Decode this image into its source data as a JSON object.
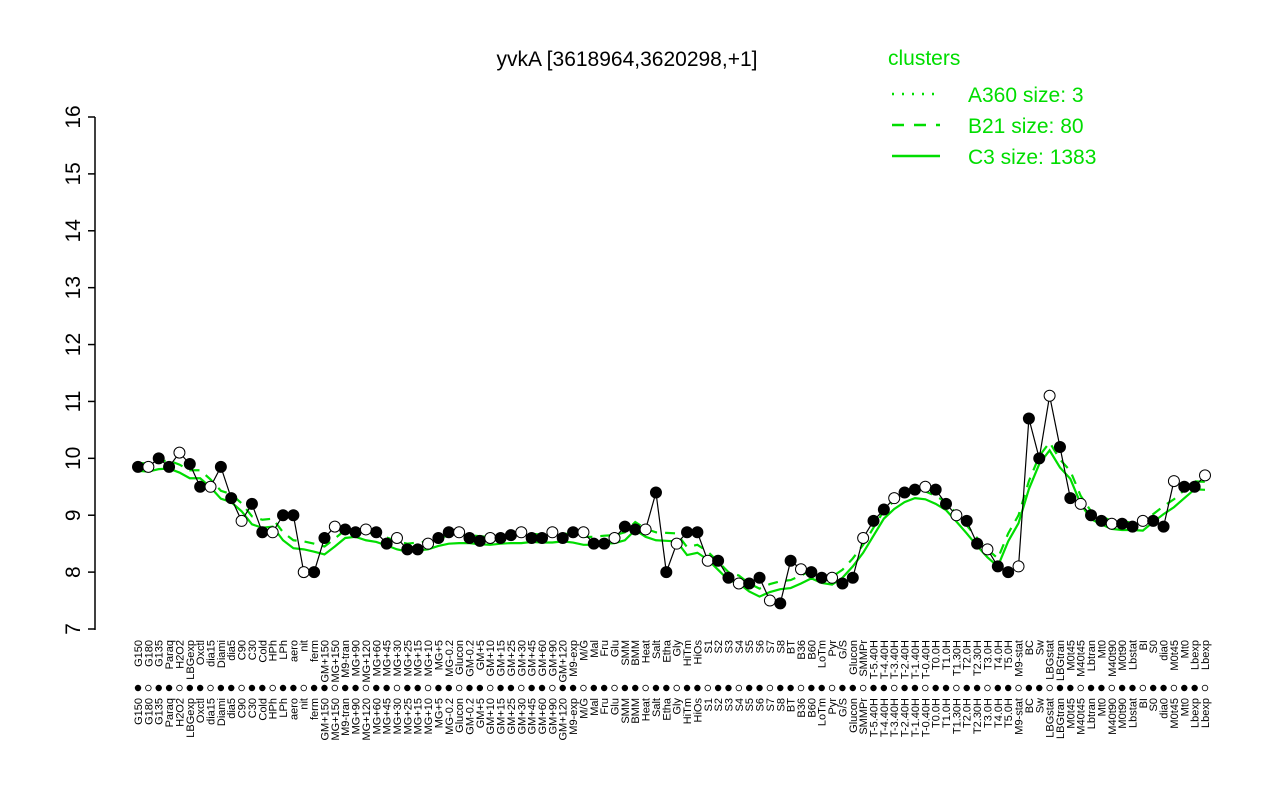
{
  "colors": {
    "accent": "#00dd00",
    "axis": "#000000",
    "point": "#000000"
  },
  "chart_data": {
    "type": "line",
    "title": "yvkA [3618964,3620298,+1]",
    "ylabel": "",
    "xlabel": "",
    "ylim": [
      7,
      16
    ],
    "y_ticks": [
      7,
      8,
      9,
      10,
      11,
      12,
      13,
      14,
      15,
      16
    ],
    "legend": {
      "position": "top-right",
      "title": "clusters",
      "entries": [
        {
          "label": "A360 size: 3",
          "style": "dotted"
        },
        {
          "label": "B21 size: 80",
          "style": "dashed"
        },
        {
          "label": "C3 size: 1383",
          "style": "solid"
        }
      ]
    },
    "x_tick_labels": [
      "G150",
      "G180",
      "G135",
      "Paraq",
      "H2O2",
      "LBGexp",
      "Oxctl",
      "dia15",
      "Diami",
      "dia5",
      "C90",
      "C30",
      "Cold",
      "HPh",
      "LPh",
      "aero",
      "nit",
      "ferm",
      "GM+150",
      "MG+150",
      "M9-tran",
      "MG+90",
      "MG+120",
      "MG+60",
      "MG+45",
      "MG+30",
      "MG+25",
      "MG+15",
      "MG+10",
      "MG+5",
      "MG-0.2",
      "Glucon",
      "GM-0.2",
      "GM+5",
      "GM+10",
      "GM+15",
      "GM+25",
      "GM+30",
      "GM+45",
      "GM+60",
      "GM+90",
      "GM+120",
      "M9-exp",
      "M/G",
      "Mal",
      "Fru",
      "Glu",
      "SMM",
      "BMM",
      "Heat",
      "Salt",
      "Etha",
      "Gly",
      "HiTm",
      "HiOs",
      "S1",
      "S2",
      "S3",
      "S4",
      "S5",
      "S6",
      "S7",
      "S8",
      "BT",
      "B36",
      "B60",
      "LoTm",
      "Pyr",
      "G/S",
      "Glucon",
      "SMMPr",
      "T-5.40H",
      "T-4.40H",
      "T-3.40H",
      "T-2.40H",
      "T-1.40H",
      "T-0.40H",
      "T0.0H",
      "T1.0H",
      "T1.30H",
      "T2.0H",
      "T2.30H",
      "T3.0H",
      "T4.0H",
      "T5.0H",
      "M9-stat",
      "BC",
      "Sw",
      "LBGstat",
      "LBGtran",
      "M0t45",
      "M40t45",
      "Lbtran",
      "Mt0",
      "M40t90",
      "M0t90",
      "Lbstat",
      "BI",
      "S0",
      "dia0",
      "M0t45",
      "Mt0",
      "Lbexp",
      "Lbexp"
    ],
    "series": [
      {
        "name": "",
        "values": [
          9.85,
          9.85,
          10.0,
          9.85,
          10.1,
          9.9,
          9.5,
          9.5,
          9.85,
          9.3,
          8.9,
          9.2,
          8.7,
          8.7,
          9.0,
          9.0,
          8.0,
          8.0,
          8.6,
          8.8,
          8.75,
          8.7,
          8.75,
          8.7,
          8.5,
          8.6,
          8.4,
          8.4,
          8.5,
          8.6,
          8.7,
          8.7,
          8.6,
          8.55,
          8.6,
          8.6,
          8.65,
          8.7,
          8.6,
          8.6,
          8.7,
          8.6,
          8.7,
          8.7,
          8.5,
          8.5,
          8.6,
          8.8,
          8.75,
          8.75,
          9.4,
          8.0,
          8.5,
          8.7,
          8.7,
          8.2,
          8.2,
          7.9,
          7.8,
          7.8,
          7.9,
          7.5,
          7.45,
          8.2,
          8.05,
          8.0,
          7.9,
          7.9,
          7.8,
          7.9,
          8.6,
          8.9,
          9.1,
          9.3,
          9.4,
          9.45,
          9.5,
          9.45,
          9.2,
          9.0,
          8.9,
          8.5,
          8.4,
          8.1,
          8.0,
          8.1,
          10.7,
          10.0,
          11.1,
          10.2,
          9.3,
          9.2,
          9.0,
          8.9,
          8.85,
          8.85,
          8.8,
          8.9,
          8.9,
          8.8,
          9.6,
          9.5,
          9.5,
          9.7
        ]
      }
    ]
  }
}
